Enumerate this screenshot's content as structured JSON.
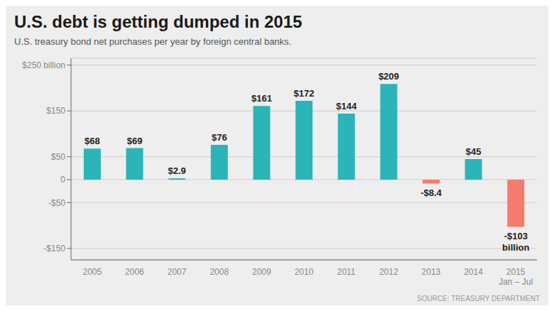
{
  "chart_data": {
    "type": "bar",
    "title": "U.S. debt is getting dumped in 2015",
    "subtitle": "U.S. treasury bond net purchases per year by foreign central banks.",
    "annotations": [
      "SOURCE: TREASURY DEPARTMENT"
    ],
    "categories": [
      "2005",
      "2006",
      "2007",
      "2008",
      "2009",
      "2010",
      "2011",
      "2012",
      "2013",
      "2014",
      "2015\nJan – Jul"
    ],
    "values": [
      68,
      69,
      2.9,
      76,
      161,
      172,
      144,
      209,
      -8.4,
      45,
      -103
    ],
    "value_labels": [
      "$68",
      "$69",
      "$2.9",
      "$76",
      "$161",
      "$172",
      "$144",
      "$209",
      "-$8.4",
      "$45",
      "-$103\nbillion"
    ],
    "data_labels": true,
    "colors": [
      "#2BB5B8",
      "#2BB5B8",
      "#2BB5B8",
      "#2BB5B8",
      "#2BB5B8",
      "#2BB5B8",
      "#2BB5B8",
      "#2BB5B8",
      "#F47B6E",
      "#2BB5B8",
      "#F47B6E"
    ],
    "ylim": [
      -175,
      265
    ],
    "yticks": [
      {
        "value": -150,
        "label": "-$150"
      },
      {
        "value": -50,
        "label": "-$50"
      },
      0,
      {
        "value": 50,
        "label": "$50"
      },
      {
        "value": 150,
        "label": "$150"
      },
      {
        "value": 250,
        "label": "$250 billion"
      }
    ],
    "grid": true
  }
}
